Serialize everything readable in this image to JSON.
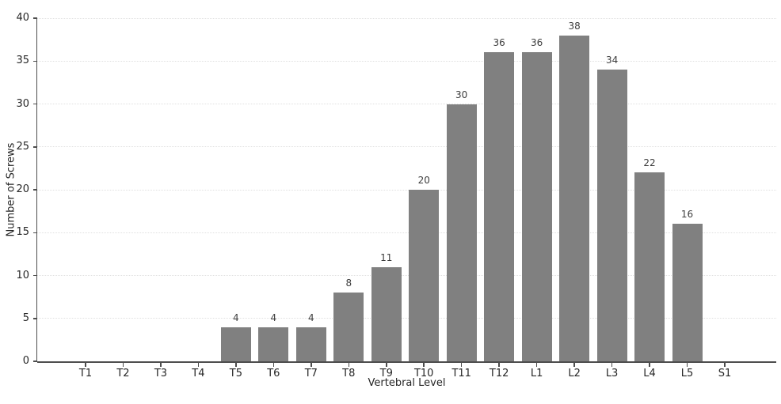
{
  "chart_data": {
    "type": "bar",
    "title": "",
    "xlabel": "Vertebral Level",
    "ylabel": "Number of Screws",
    "categories": [
      "T1",
      "T2",
      "T3",
      "T4",
      "T5",
      "T6",
      "T7",
      "T8",
      "T9",
      "T10",
      "T11",
      "T12",
      "L1",
      "L2",
      "L3",
      "L4",
      "L5",
      "S1"
    ],
    "values": [
      0,
      0,
      0,
      0,
      4,
      4,
      4,
      8,
      11,
      20,
      30,
      36,
      36,
      38,
      34,
      22,
      16,
      0
    ],
    "ylim": [
      0,
      40
    ],
    "yticks": [
      0,
      5,
      10,
      15,
      20,
      25,
      30,
      35,
      40
    ],
    "grid": "horizontal-dotted",
    "legend": "none",
    "colors": {
      "bar": "#808080",
      "value_label": "#3d3d3d",
      "tick_label": "#262626",
      "axis": "#4d4d4d",
      "gridline": "#e0e0e0",
      "background": "#ffffff"
    }
  }
}
